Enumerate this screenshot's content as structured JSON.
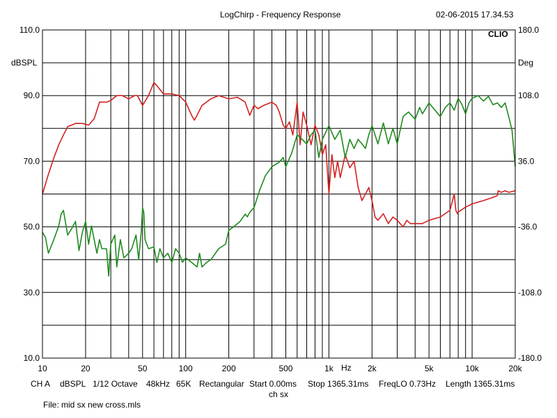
{
  "header": {
    "title": "LogChirp - Frequency Response",
    "datetime": "02-06-2015 17.34.53",
    "brand": "CLIO"
  },
  "footer": {
    "row1": [
      "CH A",
      "dBSPL",
      "1/12 Octave",
      "48kHz",
      "65K",
      "Rectangular",
      "Start 0.00ms",
      "Stop 1365.31ms",
      "FreqLO 0.73Hz",
      "Length 1365.31ms"
    ],
    "row2": "ch sx",
    "file": "File: mid sx new cross.mls"
  },
  "colors": {
    "magnitude": "#d42020",
    "phase": "#1f8a1f",
    "grid": "#000000",
    "background": "#ffffff"
  },
  "chart_data": {
    "type": "line",
    "title": "LogChirp - Frequency Response",
    "xscale": "log",
    "xlim": [
      10,
      20000
    ],
    "x_ticks": [
      {
        "v": 10,
        "label": "10"
      },
      {
        "v": 20,
        "label": "20"
      },
      {
        "v": 50,
        "label": "50"
      },
      {
        "v": 100,
        "label": "100"
      },
      {
        "v": 200,
        "label": "200"
      },
      {
        "v": 500,
        "label": "500"
      },
      {
        "v": 1000,
        "label": "1k"
      },
      {
        "v": 2000,
        "label": "2k"
      },
      {
        "v": 5000,
        "label": "5k"
      },
      {
        "v": 10000,
        "label": "10k"
      },
      {
        "v": 20000,
        "label": "20k"
      }
    ],
    "xunit": "Hz",
    "ylabel_left": "dBSPL",
    "ylim_left": [
      10,
      110
    ],
    "y_ticks_left": [
      {
        "v": 110,
        "label": "110.0"
      },
      {
        "v": 90,
        "label": "90.0"
      },
      {
        "v": 70,
        "label": "70.0"
      },
      {
        "v": 50,
        "label": "50.0"
      },
      {
        "v": 30,
        "label": "30.0"
      },
      {
        "v": 10,
        "label": "10.0"
      }
    ],
    "ylabel_right": "Deg",
    "ylim_right": [
      -180,
      180
    ],
    "y_ticks_right": [
      {
        "v": 180,
        "label": "180.0"
      },
      {
        "v": 108,
        "label": "108.0"
      },
      {
        "v": 36,
        "label": "36.0"
      },
      {
        "v": -36,
        "label": "-36.0"
      },
      {
        "v": -108,
        "label": "-108.0"
      },
      {
        "v": -180,
        "label": "-180.0"
      }
    ],
    "grid": true,
    "series": [
      {
        "axis": "left",
        "color": "#d42020",
        "x": [
          10,
          11,
          12,
          13,
          14,
          15,
          17,
          19,
          21,
          22,
          23,
          25,
          28,
          30,
          33,
          36,
          40,
          44,
          46,
          50,
          55,
          60,
          63,
          70,
          80,
          90,
          100,
          110,
          115,
          120,
          130,
          150,
          170,
          200,
          230,
          260,
          280,
          300,
          320,
          350,
          400,
          430,
          450,
          480,
          500,
          530,
          560,
          600,
          630,
          660,
          700,
          750,
          800,
          850,
          900,
          950,
          1000,
          1050,
          1100,
          1150,
          1200,
          1300,
          1400,
          1500,
          1600,
          1700,
          1800,
          1900,
          2000,
          2100,
          2200,
          2400,
          2600,
          2800,
          3000,
          3300,
          3500,
          3700,
          4000,
          4500,
          5000,
          6000,
          7000,
          7500,
          7700,
          7900,
          8000,
          9000,
          10000,
          12000,
          14000,
          15000,
          15200,
          16000,
          17000,
          18000,
          20000
        ],
        "y": [
          60,
          66,
          71,
          75,
          78,
          80.5,
          81.5,
          81.5,
          81,
          82,
          83,
          88,
          88,
          88.5,
          90,
          90,
          89,
          90,
          90,
          87,
          90,
          94,
          93,
          90.5,
          90.5,
          90,
          88,
          84,
          82.5,
          84,
          87,
          89,
          90,
          89,
          89.5,
          88,
          84,
          87,
          86,
          87,
          88,
          87,
          85,
          81,
          80,
          82,
          78,
          88,
          75,
          85,
          81,
          75,
          81,
          78,
          72,
          75,
          60,
          72,
          65,
          70,
          65,
          72,
          68,
          70,
          62,
          58,
          60,
          62,
          58,
          53,
          52,
          54,
          51,
          53,
          52,
          50,
          52,
          51,
          51,
          51,
          52,
          53,
          55,
          60,
          55,
          54,
          54.5,
          56,
          57,
          58,
          59,
          59.5,
          61,
          60.5,
          61,
          60.5,
          61
        ]
      },
      {
        "axis": "right",
        "color": "#1f8a1f",
        "x": [
          10,
          10.5,
          11,
          12,
          13,
          13.5,
          14,
          15,
          16,
          17,
          18,
          19,
          20,
          21,
          22,
          24,
          25,
          26,
          28,
          29,
          30,
          32,
          33,
          35,
          37,
          40,
          42,
          45,
          47,
          49,
          50,
          51,
          52,
          55,
          60,
          63,
          66,
          70,
          75,
          80,
          85,
          90,
          95,
          100,
          110,
          120,
          125,
          130,
          140,
          150,
          170,
          190,
          200,
          220,
          240,
          260,
          270,
          280,
          300,
          330,
          360,
          400,
          450,
          480,
          500,
          550,
          600,
          650,
          700,
          750,
          800,
          850,
          900,
          1000,
          1100,
          1200,
          1300,
          1400,
          1500,
          1600,
          1700,
          1800,
          1900,
          2000,
          2200,
          2400,
          2600,
          2800,
          3000,
          3300,
          3600,
          4000,
          4300,
          4500,
          5000,
          5500,
          6000,
          6500,
          7000,
          7500,
          8000,
          8500,
          9000,
          9500,
          10000,
          11000,
          12000,
          13000,
          14000,
          15000,
          16000,
          17000,
          18000,
          19000,
          20000
        ],
        "y": [
          -42,
          -48,
          -65,
          -50,
          -35,
          -22,
          -18,
          -45,
          -38,
          -30,
          -62,
          -42,
          -30,
          -55,
          -35,
          -65,
          -50,
          -60,
          -60,
          -90,
          -55,
          -45,
          -80,
          -50,
          -70,
          -65,
          -60,
          -45,
          -72,
          -40,
          -15,
          -20,
          -50,
          -60,
          -58,
          -75,
          -60,
          -70,
          -65,
          -75,
          -60,
          -65,
          -75,
          -70,
          -75,
          -80,
          -65,
          -80,
          -75,
          -72,
          -60,
          -55,
          -40,
          -35,
          -30,
          -22,
          -25,
          -20,
          -15,
          5,
          20,
          30,
          35,
          40,
          30,
          45,
          65,
          60,
          55,
          65,
          70,
          40,
          60,
          75,
          60,
          70,
          40,
          60,
          50,
          60,
          55,
          50,
          65,
          75,
          55,
          78,
          55,
          72,
          55,
          85,
          90,
          82,
          95,
          88,
          100,
          92,
          85,
          95,
          100,
          92,
          105,
          98,
          88,
          100,
          105,
          108,
          102,
          107,
          98,
          100,
          95,
          100,
          85,
          70,
          30
        ]
      }
    ]
  }
}
